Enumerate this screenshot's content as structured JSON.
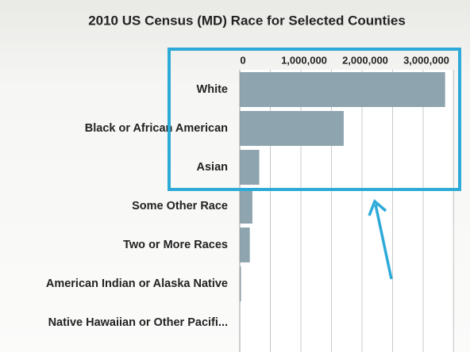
{
  "chart_data": {
    "type": "bar",
    "orientation": "horizontal",
    "title": "2010 US Census (MD) Race for Selected Counties",
    "categories": [
      "White",
      "Black or African American",
      "Asian",
      "Some Other Race",
      "Two or More Races",
      "American Indian or Alaska Native",
      "Native Hawaiian or Other Pacifi..."
    ],
    "values": [
      3359284,
      1700298,
      318853,
      206832,
      164708,
      20420,
      3157
    ],
    "color": "#8ea4ae",
    "xlim": [
      0,
      3500000
    ],
    "xticks": [
      {
        "value": 0,
        "label": "0"
      },
      {
        "value": 1000000,
        "label": "1,000,000"
      },
      {
        "value": 2000000,
        "label": "2,000,000"
      },
      {
        "value": 3000000,
        "label": "3,000,000"
      }
    ],
    "minor_xticks": [
      500000,
      1500000,
      2500000,
      3500000
    ],
    "grid": true
  }
}
